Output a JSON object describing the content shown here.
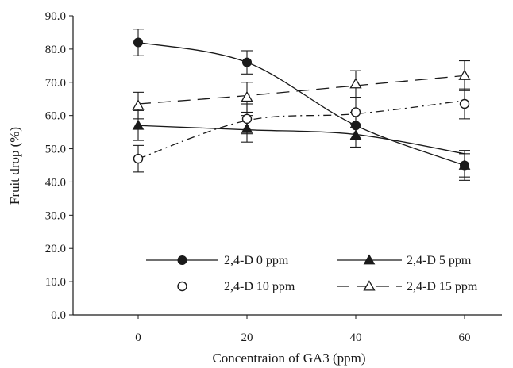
{
  "chart_data": {
    "type": "line",
    "xlabel": "Concentraion of GA3 (ppm)",
    "ylabel": "Fruit drop (%)",
    "x": [
      0,
      20,
      40,
      60
    ],
    "x_tick_labels": [
      "0",
      "20",
      "40",
      "60"
    ],
    "ylim": [
      0,
      90
    ],
    "y_tick_labels": [
      "0.0",
      "10.0",
      "20.0",
      "30.0",
      "40.0",
      "50.0",
      "60.0",
      "70.0",
      "80.0",
      "90.0"
    ],
    "grid": false,
    "legend_position": "bottom-right",
    "series": [
      {
        "name": "2,4-D 0 ppm",
        "marker": "filled-circle",
        "line": "solid",
        "values": [
          82.0,
          76.0,
          57.0,
          45.0
        ],
        "errors": [
          4.0,
          3.5,
          4.0,
          4.5
        ],
        "trend": [
          82.0,
          76.0,
          57.0,
          45.0
        ]
      },
      {
        "name": "2,4-D 5 ppm",
        "marker": "filled-triangle",
        "line": "solid",
        "values": [
          57.0,
          56.0,
          54.0,
          45.0
        ],
        "errors": [
          4.5,
          4.0,
          3.5,
          3.5
        ],
        "trend": [
          57.0,
          55.7,
          54.3,
          48.5
        ]
      },
      {
        "name": "2,4-D 10 ppm",
        "marker": "open-circle",
        "line": "dash-dot",
        "values": [
          47.0,
          59.0,
          61.0,
          63.5
        ],
        "errors": [
          4.0,
          4.5,
          4.5,
          4.5
        ],
        "trend": [
          47.0,
          58.5,
          60.5,
          64.5
        ]
      },
      {
        "name": "2,4-D 15 ppm",
        "marker": "open-triangle",
        "line": "dashed",
        "values": [
          63.0,
          65.5,
          69.5,
          72.0
        ],
        "errors": [
          4.0,
          4.5,
          4.0,
          4.5
        ],
        "trend": [
          63.5,
          66.0,
          69.0,
          72.0
        ]
      }
    ]
  },
  "colors": {
    "ink": "#1a1a1a",
    "background": "#ffffff"
  }
}
